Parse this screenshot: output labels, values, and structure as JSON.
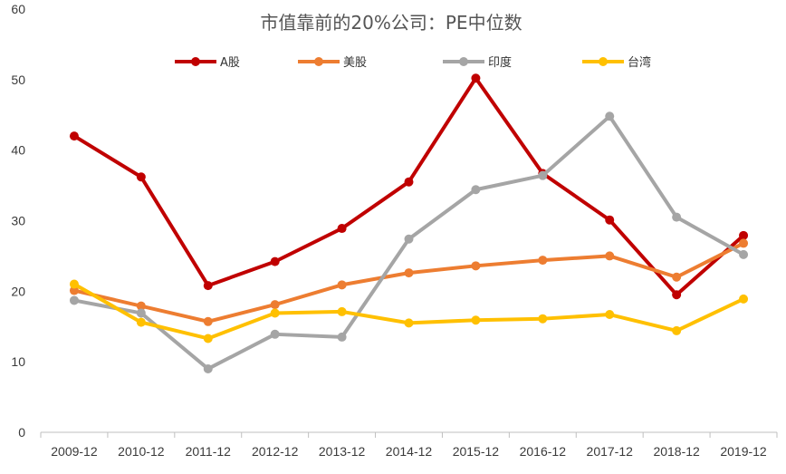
{
  "chart_data": {
    "type": "line",
    "title": "市值靠前的20%公司：PE中位数",
    "xlabel": "",
    "ylabel": "",
    "ylim": [
      0,
      60
    ],
    "yticks": [
      0,
      10,
      20,
      30,
      40,
      50,
      60
    ],
    "grid": false,
    "legend_position": "top",
    "categories": [
      "2009-12",
      "2010-12",
      "2011-12",
      "2012-12",
      "2013-12",
      "2014-12",
      "2015-12",
      "2016-12",
      "2017-12",
      "2018-12",
      "2019-12"
    ],
    "series": [
      {
        "name": "A股",
        "color": "#C00000",
        "values": [
          42,
          36.2,
          20.8,
          24.2,
          28.9,
          35.5,
          50.2,
          36.7,
          30.1,
          19.5,
          27.9
        ]
      },
      {
        "name": "美股",
        "color": "#ED7D31",
        "values": [
          20.1,
          17.9,
          15.7,
          18.1,
          20.9,
          22.6,
          23.6,
          24.4,
          25.0,
          22.0,
          26.8
        ]
      },
      {
        "name": "印度",
        "color": "#A5A5A5",
        "values": [
          18.7,
          16.9,
          9.0,
          13.9,
          13.5,
          27.4,
          34.4,
          36.4,
          44.8,
          30.5,
          25.2
        ]
      },
      {
        "name": "台湾",
        "color": "#FFC000",
        "values": [
          21.0,
          15.6,
          13.3,
          16.9,
          17.1,
          15.5,
          15.9,
          16.1,
          16.7,
          14.4,
          18.9
        ]
      }
    ]
  }
}
